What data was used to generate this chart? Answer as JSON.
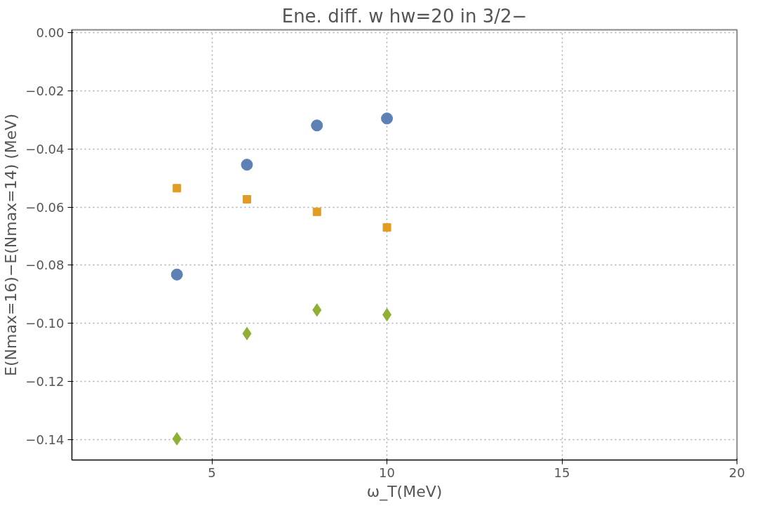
{
  "chart_data": {
    "type": "scatter",
    "title": "Ene. diff. w hw=20 in 3/2−",
    "xlabel": "ω_T(MeV)",
    "ylabel": "E(Nmax=16)−E(Nmax=14) (MeV)",
    "x": [
      4,
      6,
      8,
      10
    ],
    "series": [
      {
        "color": "#5e81b5",
        "marker": "circle",
        "values": [
          -0.0832,
          -0.0454,
          -0.0319,
          -0.0295
        ]
      },
      {
        "color": "#e19c24",
        "marker": "square",
        "values": [
          -0.0535,
          -0.0573,
          -0.0616,
          -0.067
        ]
      },
      {
        "color": "#8fb032",
        "marker": "diamond",
        "values": [
          -0.1397,
          -0.1035,
          -0.0954,
          -0.097
        ]
      }
    ],
    "xlim": [
      1,
      20
    ],
    "ylim": [
      -0.147,
      0.001
    ],
    "xticks": [
      5,
      10,
      15,
      20
    ],
    "yticks": [
      {
        "value": 0,
        "label": "0.00"
      },
      {
        "value": -0.02,
        "label": "−0.02"
      },
      {
        "value": -0.04,
        "label": "−0.04"
      },
      {
        "value": -0.06,
        "label": "−0.06"
      },
      {
        "value": -0.08,
        "label": "−0.08"
      },
      {
        "value": -0.1,
        "label": "−0.10"
      },
      {
        "value": -0.12,
        "label": "−0.12"
      },
      {
        "value": -0.14,
        "label": "−0.14"
      }
    ],
    "grid": true,
    "line_style": "dotted"
  }
}
